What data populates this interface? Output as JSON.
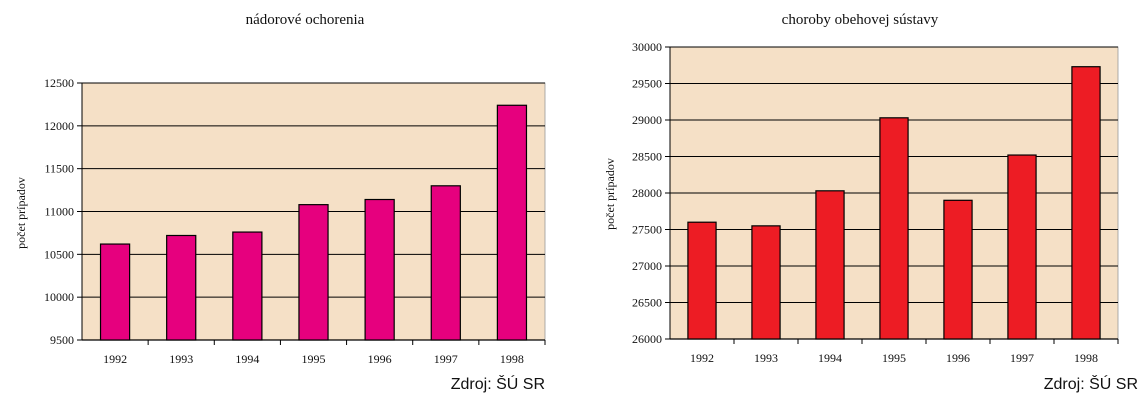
{
  "chart_data": [
    {
      "type": "bar",
      "title": "nádorové ochorenia",
      "ylabel": "počet prípadov",
      "xlabel": "",
      "categories": [
        "1992",
        "1993",
        "1994",
        "1995",
        "1996",
        "1997",
        "1998"
      ],
      "values": [
        10620,
        10720,
        10760,
        11080,
        11140,
        11300,
        12240
      ],
      "ylim": [
        9500,
        12500
      ],
      "yticks": [
        9500,
        10000,
        10500,
        11000,
        11500,
        12000,
        12500
      ],
      "grid": true,
      "source": "Zdroj: ŠÚ SR",
      "colors": {
        "bar": "#e6007e",
        "plot_bg": "#f5e0c6"
      }
    },
    {
      "type": "bar",
      "title": "choroby obehovej sústavy",
      "ylabel": "počet prípadov",
      "xlabel": "",
      "categories": [
        "1992",
        "1993",
        "1994",
        "1995",
        "1996",
        "1997",
        "1998"
      ],
      "values": [
        27600,
        27550,
        28030,
        29030,
        27900,
        28520,
        29730
      ],
      "ylim": [
        26000,
        30000
      ],
      "yticks": [
        26000,
        26500,
        27000,
        27500,
        28000,
        28500,
        29000,
        29500,
        30000
      ],
      "grid": true,
      "source": "Zdroj: ŠÚ SR",
      "colors": {
        "bar": "#ed1c24",
        "plot_bg": "#f5e0c6"
      }
    }
  ]
}
